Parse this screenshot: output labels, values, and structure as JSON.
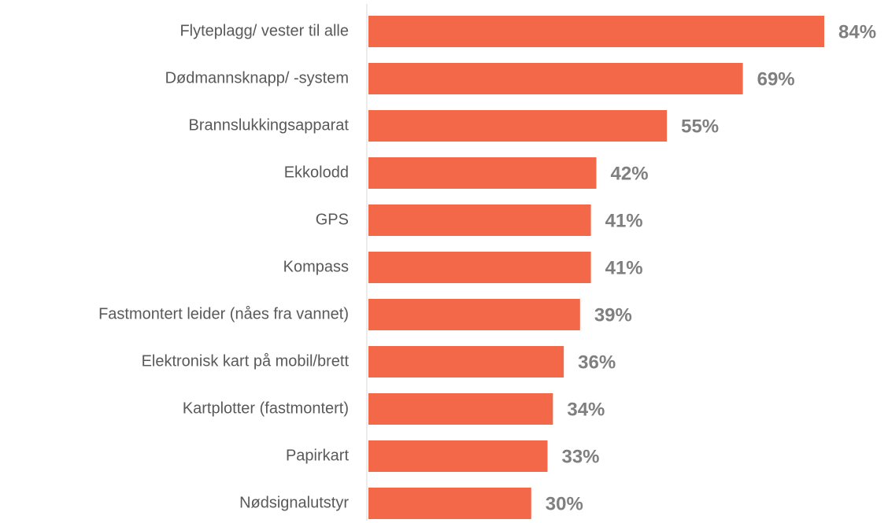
{
  "chart_data": {
    "type": "bar",
    "orientation": "horizontal",
    "categories": [
      "Flyteplagg/ vester til alle",
      "Dødmannsknapp/ -system",
      "Brannslukkingsapparat",
      "Ekkolodd",
      "GPS",
      "Kompass",
      "Fastmontert leider (nåes fra vannet)",
      "Elektronisk kart på mobil/brett",
      "Kartplotter (fastmontert)",
      "Papirkart",
      "Nødsignalutstyr"
    ],
    "values": [
      84,
      69,
      55,
      42,
      41,
      41,
      39,
      36,
      34,
      33,
      30
    ],
    "value_labels": [
      "84%",
      "69%",
      "55%",
      "42%",
      "41%",
      "41%",
      "39%",
      "36%",
      "34%",
      "33%",
      "30%"
    ],
    "color": "#f26849"
  }
}
